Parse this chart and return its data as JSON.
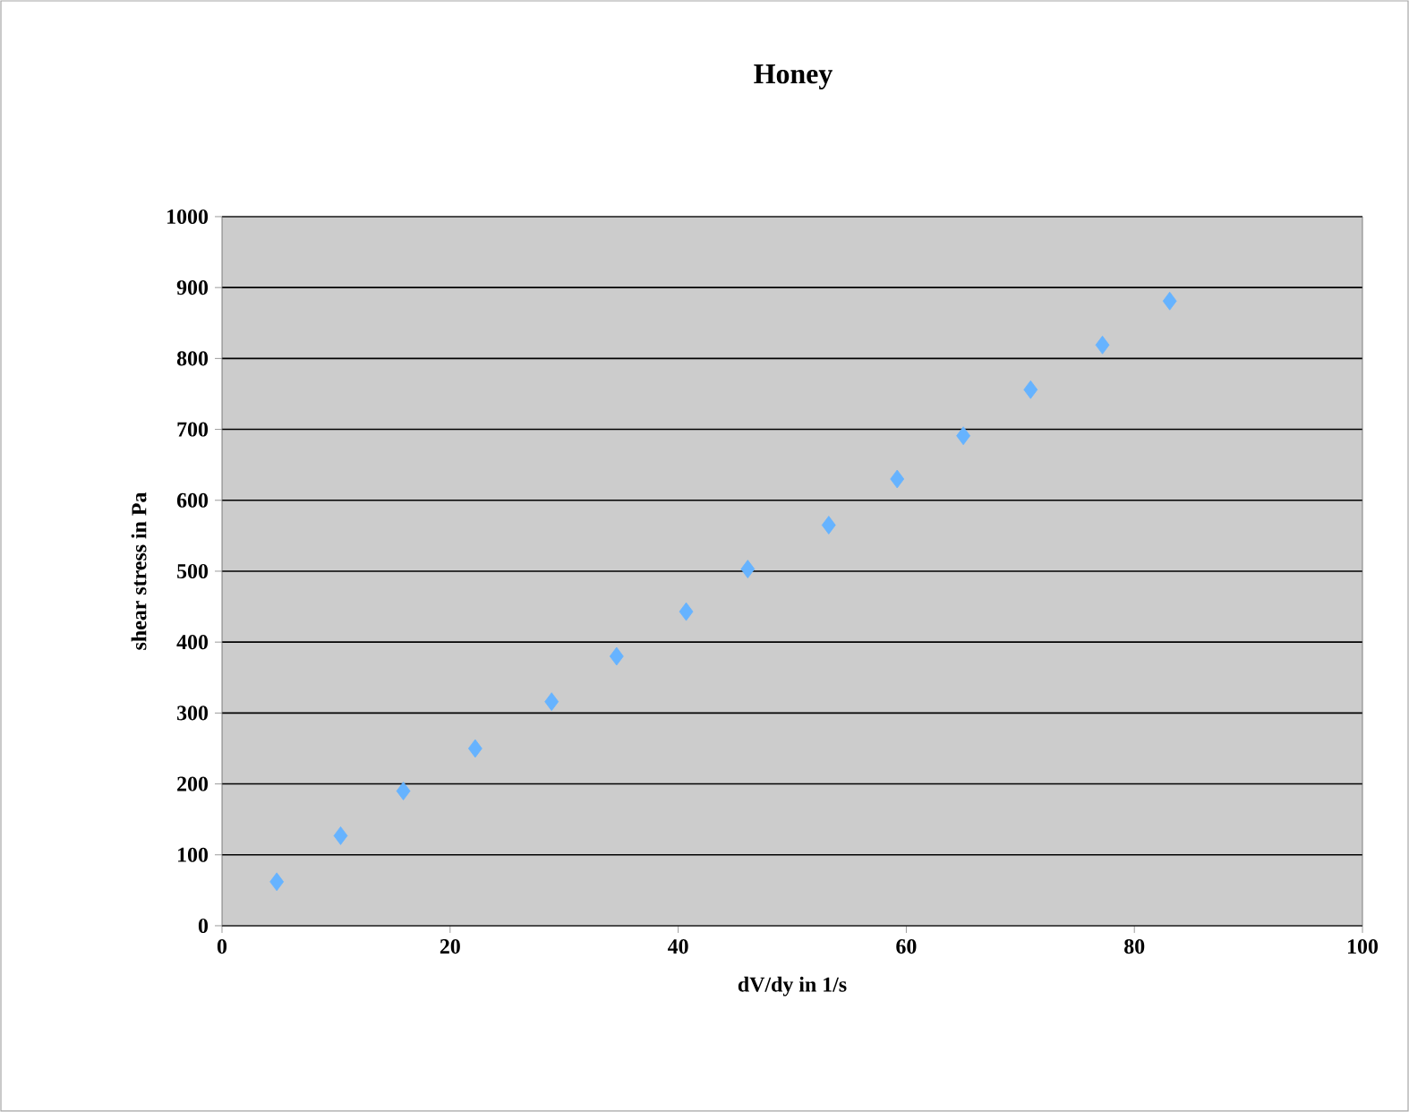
{
  "chart_data": {
    "type": "scatter",
    "title": "Honey",
    "xlabel": "dV/dy in 1/s",
    "ylabel": "shear stress in Pa",
    "x": [
      4.8,
      10.4,
      15.9,
      22.2,
      28.9,
      34.6,
      40.7,
      46.1,
      53.2,
      59.2,
      65.0,
      70.9,
      77.2,
      83.1
    ],
    "values": [
      62,
      127,
      190,
      250,
      316,
      380,
      443,
      503,
      565,
      630,
      691,
      756,
      819,
      881
    ],
    "color": "#66b3ff",
    "marker": "diamond",
    "grid": "y",
    "xlim": [
      0,
      100
    ],
    "xticks": [
      0,
      20,
      40,
      60,
      80,
      100
    ],
    "ylim": [
      0,
      1000
    ],
    "yticks": [
      0,
      100,
      200,
      300,
      400,
      500,
      600,
      700,
      800,
      900,
      1000
    ]
  }
}
